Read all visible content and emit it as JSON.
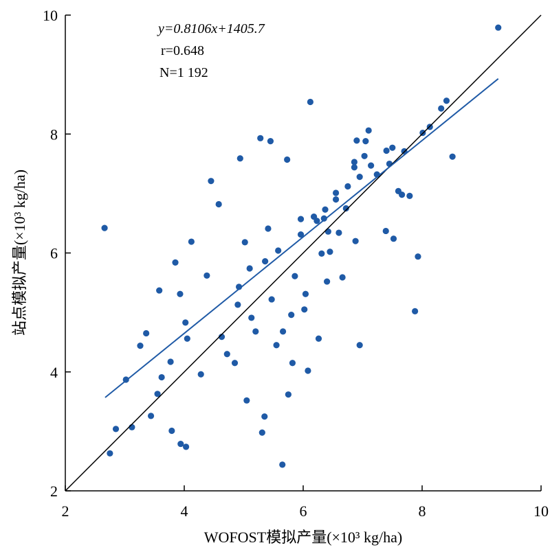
{
  "chart_data": {
    "type": "scatter",
    "title": "",
    "xlabel": "WOFOST模拟产量(×10³ kg/ha)",
    "ylabel": "站点模拟产量(×10³ kg/ha)",
    "xlim": [
      2,
      10
    ],
    "ylim": [
      2,
      10
    ],
    "xticks": [
      "2",
      "4",
      "6",
      "8",
      "10"
    ],
    "yticks": [
      "2",
      "4",
      "6",
      "8",
      "10"
    ],
    "grid": false,
    "legend": "none",
    "annotations": [
      "y=0.8106x+1405.7",
      "r=0.648",
      "N=1 192"
    ],
    "point_color": "#1f5aa6",
    "fit_line_color": "#1f5aa6",
    "reference_line_color": "#000000",
    "reference_line": {
      "x": [
        2,
        10
      ],
      "y": [
        2,
        10
      ]
    },
    "fit_line": {
      "x": [
        2.67,
        9.28
      ],
      "y": [
        3.57,
        8.93
      ]
    },
    "sample_points": {
      "x": [
        2.66,
        2.75,
        2.85,
        3.02,
        3.12,
        3.26,
        3.44,
        3.55,
        3.62,
        3.94,
        4.03,
        4.05,
        9.28,
        8.51,
        5.65,
        5.31,
        6.08,
        6.12,
        6.37,
        7.05,
        6.75,
        7.4,
        6.95,
        7.7,
        7.88,
        7.93,
        3.85,
        3.79,
        4.38,
        4.58,
        4.45,
        4.94,
        5.28,
        5.45,
        5.73,
        4.92,
        5.02,
        5.36,
        5.58,
        5.86,
        5.47,
        5.96,
        6.23,
        6.42,
        6.55,
        6.72,
        6.04,
        6.31,
        5.8,
        5.66,
        6.26,
        6.86,
        7.03,
        7.24,
        6.55,
        6.9,
        7.1,
        7.45,
        7.6,
        8.01,
        8.13,
        8.32,
        8.41,
        7.52,
        7.79,
        6.88,
        6.45,
        6.18,
        5.55,
        5.13,
        4.72,
        4.28,
        4.02,
        3.77,
        3.58,
        5.05,
        5.82,
        6.02,
        6.66,
        7.39,
        7.66,
        5.2,
        4.9,
        4.63,
        5.1,
        5.96,
        6.35,
        6.86,
        7.14,
        7.5,
        6.4,
        5.35,
        5.75,
        4.85,
        6.95,
        3.36,
        3.93,
        4.12,
        5.41,
        6.6
      ],
      "y": [
        6.42,
        2.63,
        3.04,
        3.87,
        3.07,
        4.44,
        3.26,
        3.63,
        3.91,
        2.79,
        2.74,
        4.56,
        9.79,
        7.62,
        2.44,
        2.98,
        4.02,
        8.54,
        6.73,
        7.88,
        7.12,
        7.72,
        7.28,
        7.71,
        5.02,
        5.94,
        5.84,
        3.01,
        5.62,
        6.82,
        7.21,
        7.59,
        7.93,
        7.88,
        7.57,
        5.43,
        6.18,
        5.86,
        6.04,
        5.61,
        5.22,
        6.57,
        6.54,
        6.36,
        6.9,
        6.75,
        5.31,
        5.99,
        4.96,
        4.68,
        4.56,
        7.44,
        7.63,
        7.32,
        7.01,
        7.89,
        8.06,
        7.5,
        7.04,
        8.02,
        8.12,
        8.43,
        8.56,
        6.24,
        6.96,
        6.2,
        6.02,
        6.61,
        4.45,
        4.91,
        4.3,
        3.96,
        4.83,
        4.17,
        5.37,
        3.52,
        4.15,
        5.05,
        5.59,
        6.37,
        6.98,
        4.68,
        5.13,
        4.59,
        5.74,
        6.31,
        6.58,
        7.53,
        7.47,
        7.77,
        5.52,
        3.25,
        3.62,
        4.15,
        4.45,
        4.65,
        5.31,
        6.19,
        6.41,
        6.34
      ]
    }
  }
}
